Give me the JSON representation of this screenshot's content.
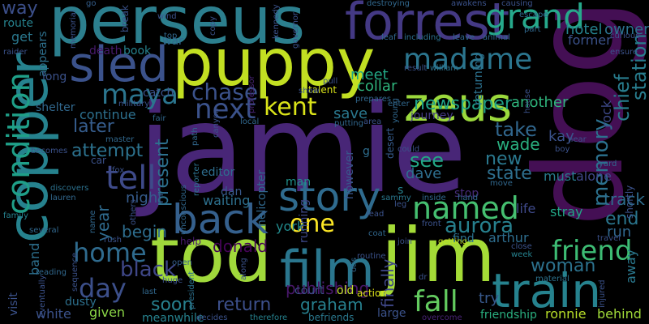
{
  "words": [
    {
      "text": "jamie",
      "color": "#482677"
    },
    {
      "text": "dog",
      "color": "#440f54"
    },
    {
      "text": "tod",
      "color": "#a0d93b"
    },
    {
      "text": "jim",
      "color": "#a4db37"
    },
    {
      "text": "perseus",
      "color": "#2c7f8e"
    },
    {
      "text": "puppy",
      "color": "#c2df22"
    },
    {
      "text": "copper",
      "color": "#26828e"
    },
    {
      "text": "forrest",
      "color": "#443984"
    },
    {
      "text": "sled",
      "color": "#3b528b"
    },
    {
      "text": "zeus",
      "color": "#9bd93c"
    },
    {
      "text": "film",
      "color": "#2a768e"
    },
    {
      "text": "train",
      "color": "#26828e"
    },
    {
      "text": "back",
      "color": "#35608d"
    },
    {
      "text": "story",
      "color": "#2f6b8e"
    },
    {
      "text": "grand",
      "color": "#26a98b"
    },
    {
      "text": "madame",
      "color": "#2b758e"
    },
    {
      "text": "condition",
      "color": "#1f9f88"
    },
    {
      "text": "named",
      "color": "#45bf70"
    },
    {
      "text": "maya",
      "color": "#2b758e"
    },
    {
      "text": "next",
      "color": "#3b528b"
    },
    {
      "text": "kent",
      "color": "#dae319"
    },
    {
      "text": "chase",
      "color": "#3b528b"
    },
    {
      "text": "tell",
      "color": "#3e4a89"
    },
    {
      "text": "friend",
      "color": "#3dbc74"
    },
    {
      "text": "home",
      "color": "#2f6b8e"
    },
    {
      "text": "day",
      "color": "#3c4f8a"
    },
    {
      "text": "fall",
      "color": "#63cb5f"
    },
    {
      "text": "one",
      "color": "#fde725"
    },
    {
      "text": "memory",
      "color": "#2c718e"
    },
    {
      "text": "aurora",
      "color": "#27808e"
    },
    {
      "text": "newspaper",
      "color": "#1fa188"
    },
    {
      "text": "attempt",
      "color": "#2c728e"
    },
    {
      "text": "woman",
      "color": "#2c728e"
    },
    {
      "text": "black",
      "color": "#3f4788"
    },
    {
      "text": "return",
      "color": "#3c4f8a"
    },
    {
      "text": "graham",
      "color": "#27808e"
    },
    {
      "text": "later",
      "color": "#365d8d"
    },
    {
      "text": "take",
      "color": "#31678e"
    },
    {
      "text": "see",
      "color": "#22a785"
    },
    {
      "text": "new",
      "color": "#2a788e"
    },
    {
      "text": "state",
      "color": "#2e6f8e"
    },
    {
      "text": "end",
      "color": "#2a768e"
    },
    {
      "text": "soon",
      "color": "#27808e"
    },
    {
      "text": "present",
      "color": "#2d708e"
    },
    {
      "text": "begin",
      "color": "#2e6d8e"
    },
    {
      "text": "donald",
      "color": "#450457"
    },
    {
      "text": "publishing",
      "color": "#481769"
    },
    {
      "text": "chief",
      "color": "#287d8e"
    },
    {
      "text": "station",
      "color": "#287d8e"
    },
    {
      "text": "hotel",
      "color": "#26828e"
    },
    {
      "text": "owner",
      "color": "#2c718e"
    },
    {
      "text": "meet",
      "color": "#22a785"
    },
    {
      "text": "save",
      "color": "#2a788e"
    },
    {
      "text": "collar",
      "color": "#2fb47c"
    },
    {
      "text": "wade",
      "color": "#29af7f"
    },
    {
      "text": "dave",
      "color": "#2e6e8e"
    },
    {
      "text": "kay",
      "color": "#3b528b"
    },
    {
      "text": "track",
      "color": "#2e6e8e"
    },
    {
      "text": "run",
      "color": "#31688e"
    },
    {
      "text": "another",
      "color": "#2fb47c"
    },
    {
      "text": "continue",
      "color": "#2d708e"
    },
    {
      "text": "year",
      "color": "#2f6b8e"
    },
    {
      "text": "night",
      "color": "#365c8d"
    },
    {
      "text": "waiting",
      "color": "#2d708e"
    },
    {
      "text": "york",
      "color": "#228b8d"
    },
    {
      "text": "given",
      "color": "#8bd646"
    },
    {
      "text": "white",
      "color": "#3b528b"
    },
    {
      "text": "meanwhile",
      "color": "#26828e"
    },
    {
      "text": "finally",
      "color": "#3f4788"
    },
    {
      "text": "court",
      "color": "#3b528b"
    },
    {
      "text": "friendship",
      "color": "#29af7f"
    },
    {
      "text": "ronnie",
      "color": "#b8de29"
    },
    {
      "text": "behind",
      "color": "#a0da39"
    },
    {
      "text": "large",
      "color": "#3b528b"
    },
    {
      "text": "try",
      "color": "#38598c"
    },
    {
      "text": "arthur",
      "color": "#2e6d8e"
    },
    {
      "text": "find",
      "color": "#2c728e"
    },
    {
      "text": "life",
      "color": "#3e4989"
    },
    {
      "text": "stray",
      "color": "#21a585"
    },
    {
      "text": "alone",
      "color": "#3f4788"
    },
    {
      "text": "must",
      "color": "#287d8e"
    },
    {
      "text": "away",
      "color": "#2a788e"
    },
    {
      "text": "band",
      "color": "#2d708e"
    },
    {
      "text": "visit",
      "color": "#3b528b"
    },
    {
      "text": "dusty",
      "color": "#2d708e"
    },
    {
      "text": "helicopter",
      "color": "#31688e"
    },
    {
      "text": "editor",
      "color": "#2e6d8e"
    },
    {
      "text": "dan",
      "color": "#38598c"
    },
    {
      "text": "man",
      "color": "#20928c"
    },
    {
      "text": "running",
      "color": "#3e4989"
    },
    {
      "text": "stop",
      "color": "#472c7a"
    },
    {
      "text": "however",
      "color": "#39568c"
    },
    {
      "text": "desert",
      "color": "#365c8d"
    },
    {
      "text": "journey",
      "color": "#443983"
    },
    {
      "text": "rock",
      "color": "#3e4989"
    },
    {
      "text": "action",
      "color": "#dde318"
    },
    {
      "text": "old",
      "color": "#c0df25"
    },
    {
      "text": "way",
      "color": "#3c4f8a"
    },
    {
      "text": "route",
      "color": "#26828e"
    },
    {
      "text": "get",
      "color": "#2a788e"
    },
    {
      "text": "appears",
      "color": "#2d708e"
    },
    {
      "text": "long",
      "color": "#3b528b"
    },
    {
      "text": "death",
      "color": "#481a6c"
    },
    {
      "text": "book",
      "color": "#26828e"
    },
    {
      "text": "catch",
      "color": "#3b528b"
    },
    {
      "text": "shelter",
      "color": "#31688e"
    },
    {
      "text": "war",
      "color": "#31688e"
    },
    {
      "text": "break",
      "color": "#3b528b"
    },
    {
      "text": "professor",
      "color": "#482475"
    },
    {
      "text": "talent",
      "color": "#dae319"
    },
    {
      "text": "result",
      "color": "#3b528b"
    },
    {
      "text": "william",
      "color": "#2c728e"
    },
    {
      "text": "returning",
      "color": "#2c718e"
    },
    {
      "text": "leaf",
      "color": "#31688e"
    },
    {
      "text": "including",
      "color": "#2c718e"
    },
    {
      "text": "leave",
      "color": "#31688e"
    },
    {
      "text": "animal",
      "color": "#31688e"
    },
    {
      "text": "former",
      "color": "#3b528b"
    },
    {
      "text": "go",
      "color": "#355f8d"
    },
    {
      "text": "g",
      "color": "#2e6d8e"
    },
    {
      "text": "s",
      "color": "#26828e"
    },
    {
      "text": "could",
      "color": "#3b528b"
    },
    {
      "text": "sammy",
      "color": "#2a788e"
    },
    {
      "text": "inside",
      "color": "#31688e"
    },
    {
      "text": "hand",
      "color": "#31688e"
    },
    {
      "text": "move",
      "color": "#31688e"
    },
    {
      "text": "shortly",
      "color": "#3b528b"
    },
    {
      "text": "getting",
      "color": "#c2df22"
    },
    {
      "text": "close",
      "color": "#3b528b"
    },
    {
      "text": "week",
      "color": "#26828e"
    },
    {
      "text": "material",
      "color": "#2c728e"
    },
    {
      "text": "injured",
      "color": "#3b528b"
    },
    {
      "text": "overcome",
      "color": "#482475"
    },
    {
      "text": "therefore",
      "color": "#26828e"
    },
    {
      "text": "decides",
      "color": "#3b528b"
    },
    {
      "text": "befriends",
      "color": "#2a788e"
    },
    {
      "text": "president",
      "color": "#2c718e"
    },
    {
      "text": "huge",
      "color": "#3b528b"
    },
    {
      "text": "open",
      "color": "#355f8d"
    },
    {
      "text": "help",
      "color": "#481a6c"
    },
    {
      "text": "family",
      "color": "#26828e"
    },
    {
      "text": "reading",
      "color": "#31688e"
    },
    {
      "text": "several",
      "color": "#31688e"
    },
    {
      "text": "sequence",
      "color": "#3b528b"
    },
    {
      "text": "eventually",
      "color": "#3b528b"
    },
    {
      "text": "last",
      "color": "#31688e"
    },
    {
      "text": "rush",
      "color": "#3b528b"
    },
    {
      "text": "name",
      "color": "#31688e"
    },
    {
      "text": "reporter",
      "color": "#2c718e"
    },
    {
      "text": "path",
      "color": "#31688e"
    },
    {
      "text": "fair",
      "color": "#31688e"
    },
    {
      "text": "military",
      "color": "#3b528b"
    },
    {
      "text": "master",
      "color": "#31688e"
    },
    {
      "text": "fox",
      "color": "#3b528b"
    },
    {
      "text": "car",
      "color": "#3b528b"
    },
    {
      "text": "discovers",
      "color": "#2c718e"
    },
    {
      "text": "lauren",
      "color": "#31688e"
    },
    {
      "text": "becomes",
      "color": "#3b528b"
    },
    {
      "text": "raider",
      "color": "#3b528b"
    },
    {
      "text": "memorial",
      "color": "#3b528b"
    },
    {
      "text": "wind",
      "color": "#3b528b"
    },
    {
      "text": "top",
      "color": "#31688e"
    },
    {
      "text": "copy",
      "color": "#3b528b"
    },
    {
      "text": "kennedy",
      "color": "#3b528b"
    },
    {
      "text": "governor",
      "color": "#3b528b"
    },
    {
      "text": "destroying",
      "color": "#31688e"
    },
    {
      "text": "awakens",
      "color": "#3b528b"
    },
    {
      "text": "causing",
      "color": "#3b528b"
    },
    {
      "text": "escape",
      "color": "#31688e"
    },
    {
      "text": "part",
      "color": "#31688e"
    },
    {
      "text": "curious",
      "color": "#3b528b"
    },
    {
      "text": "ensure",
      "color": "#3b528b"
    },
    {
      "text": "show",
      "color": "#3b528b"
    },
    {
      "text": "pull",
      "color": "#3b528b"
    },
    {
      "text": "prepares",
      "color": "#31688e"
    },
    {
      "text": "enter",
      "color": "#31688e"
    },
    {
      "text": "area",
      "color": "#3b528b"
    },
    {
      "text": "putting",
      "color": "#31688e"
    },
    {
      "text": "young",
      "color": "#31688e"
    },
    {
      "text": "lead",
      "color": "#3b528b"
    },
    {
      "text": "leg",
      "color": "#3b528b"
    },
    {
      "text": "front",
      "color": "#3b528b"
    },
    {
      "text": "join",
      "color": "#3b528b"
    },
    {
      "text": "coat",
      "color": "#31688e"
    },
    {
      "text": "routine",
      "color": "#3b528b"
    },
    {
      "text": "otis",
      "color": "#31688e"
    },
    {
      "text": "dr",
      "color": "#3b528b"
    },
    {
      "text": "along",
      "color": "#3b528b"
    },
    {
      "text": "unconscious",
      "color": "#31688e"
    },
    {
      "text": "local",
      "color": "#31688e"
    },
    {
      "text": "canyon",
      "color": "#3b528b"
    },
    {
      "text": "others",
      "color": "#3b528b"
    },
    {
      "text": "house",
      "color": "#3b528b"
    },
    {
      "text": "near",
      "color": "#3b528b"
    },
    {
      "text": "boy",
      "color": "#3b528b"
    },
    {
      "text": "yard",
      "color": "#31688e"
    },
    {
      "text": "travel",
      "color": "#3b528b"
    }
  ]
}
